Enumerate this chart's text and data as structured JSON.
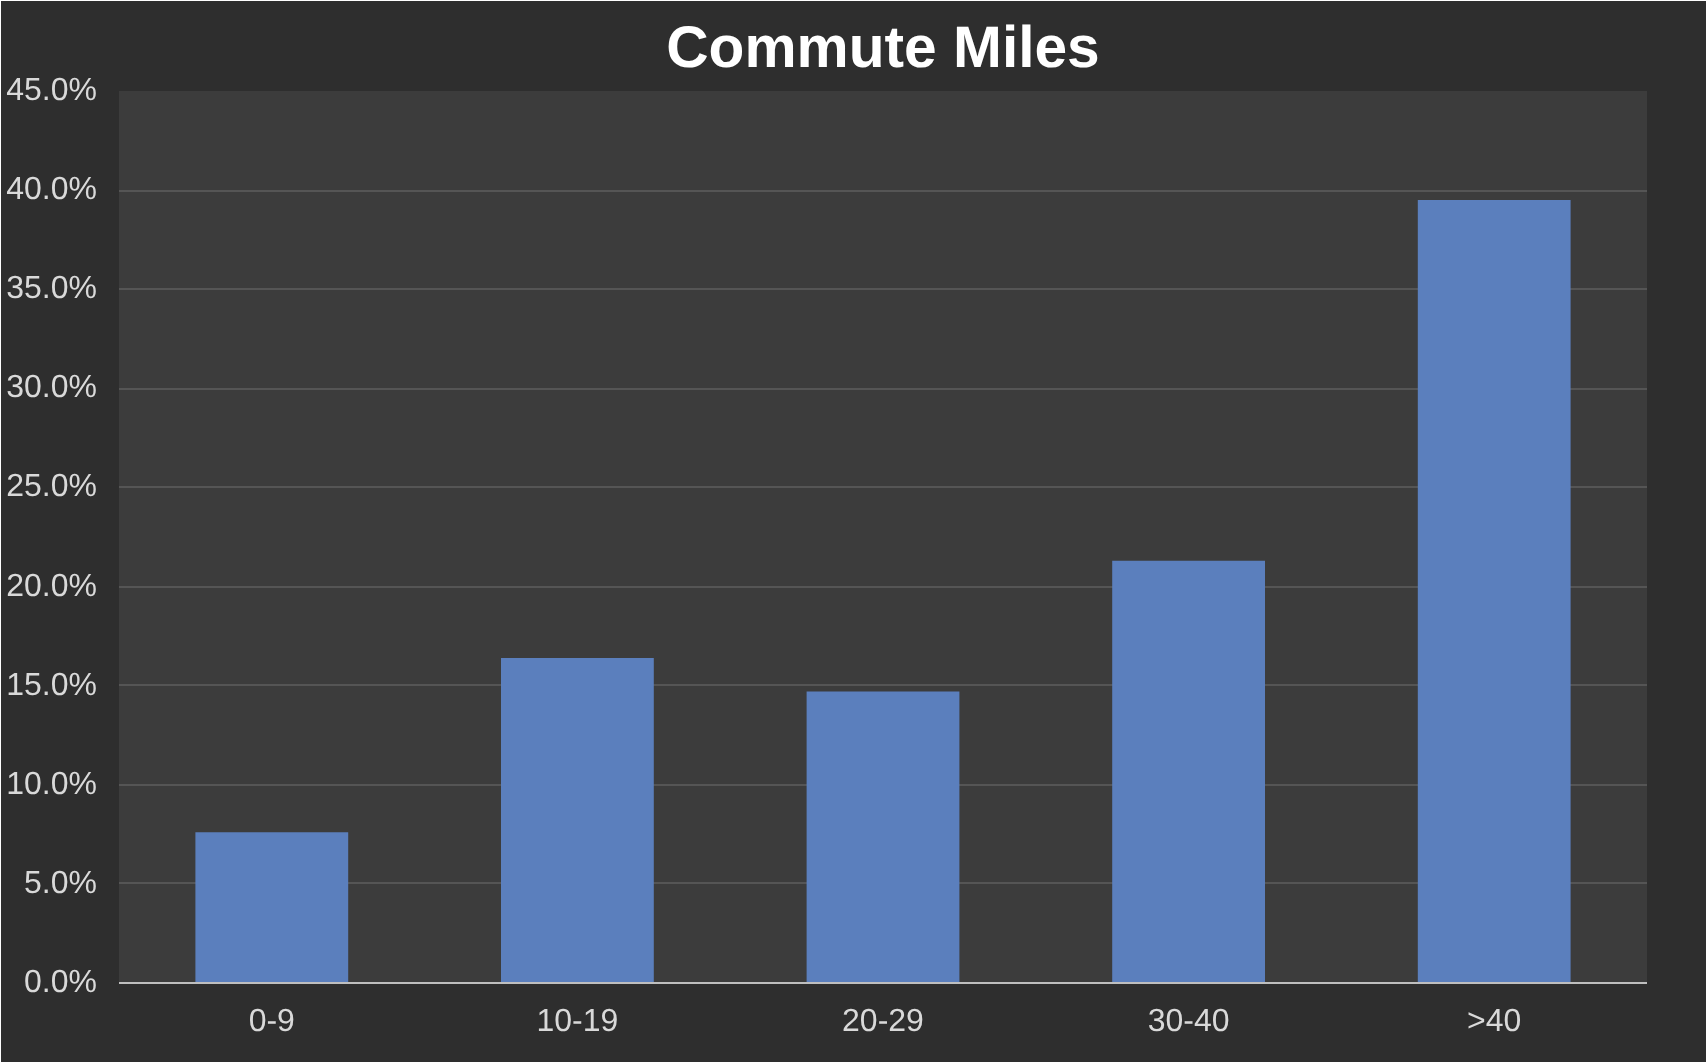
{
  "chart_data": {
    "type": "bar",
    "title": "Commute Miles",
    "categories": [
      "0-9",
      "10-19",
      "20-29",
      "30-40",
      ">40"
    ],
    "values": [
      7.6,
      16.4,
      14.7,
      21.3,
      39.5
    ],
    "color": "#5b7fbd",
    "ylim": [
      0,
      45
    ],
    "yticks": [
      {
        "value": 0,
        "label": "0.0%"
      },
      {
        "value": 5,
        "label": "5.0%"
      },
      {
        "value": 10,
        "label": "10.0%"
      },
      {
        "value": 15,
        "label": "15.0%"
      },
      {
        "value": 20,
        "label": "20.0%"
      },
      {
        "value": 25,
        "label": "25.0%"
      },
      {
        "value": 30,
        "label": "30.0%"
      },
      {
        "value": 35,
        "label": "35.0%"
      },
      {
        "value": 40,
        "label": "40.0%"
      },
      {
        "value": 45,
        "label": "45.0%"
      }
    ],
    "grid": "y"
  }
}
